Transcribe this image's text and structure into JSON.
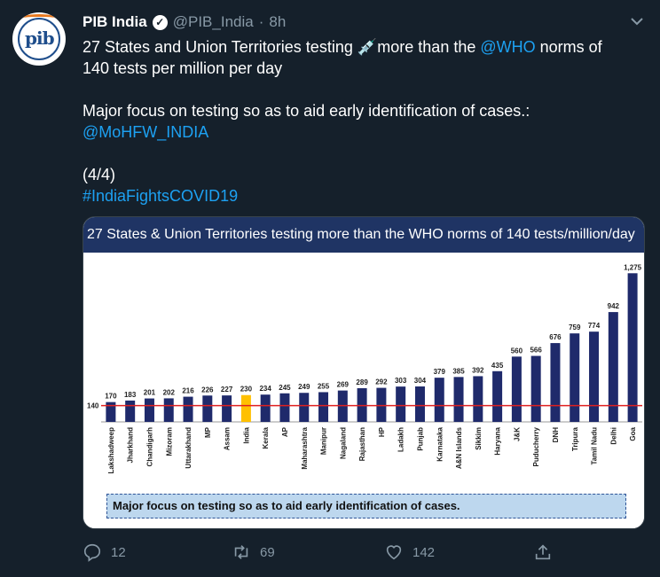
{
  "tweet": {
    "name": "PIB India",
    "handle": "@PIB_India",
    "dot": "·",
    "time": "8h",
    "line1_a": "27 States and Union Territories testing",
    "line1_b": "more than the",
    "who_link": "@WHO",
    "line1_c": "norms of",
    "line2": "140 tests per million per day",
    "line3": "Major focus on testing so as to aid early identification of cases.:",
    "mohfw_link": "@MoHFW_INDIA",
    "counter": "(4/4)",
    "hashtag": "#IndiaFightsCOVID19",
    "replies": "12",
    "retweets": "69",
    "likes": "142"
  },
  "card": {
    "title": "27 States & Union Territories  testing more than the WHO norms of 140 tests/million/day",
    "note": "Major focus on testing so as to aid early identification of cases."
  },
  "colors": {
    "background": "#15202b",
    "link": "#1da1f2",
    "muted": "#8899a6",
    "bar": "#1f2a6b",
    "highlight_bar": "#ffc000",
    "reference_line": "#e02020",
    "title_bar": "#1f3464"
  },
  "chart_data": {
    "type": "bar",
    "title": "27 States & Union Territories  testing more than the WHO norms of 140 tests/million/day",
    "categories": [
      "Lakshadweep",
      "Jharkhand",
      "Chandigarh",
      "Mizoram",
      "Uttarakhand",
      "MP",
      "Assam",
      "India",
      "Kerala",
      "AP",
      "Maharashtra",
      "Manipur",
      "Nagaland",
      "Rajasthan",
      "HP",
      "Ladakh",
      "Punjab",
      "Karnataka",
      "A&N Islands",
      "Sikkim",
      "Haryana",
      "J&K",
      "Puducherry",
      "DNH",
      "Tripura",
      "Tamil Nadu",
      "Delhi",
      "Goa"
    ],
    "values": [
      170,
      183,
      201,
      202,
      216,
      226,
      227,
      230,
      234,
      245,
      249,
      255,
      269,
      289,
      292,
      303,
      304,
      379,
      385,
      392,
      435,
      560,
      566,
      676,
      759,
      774,
      942,
      1275
    ],
    "value_labels": [
      "170",
      "183",
      "201",
      "202",
      "216",
      "226",
      "227",
      "230",
      "234",
      "245",
      "249",
      "255",
      "269",
      "289",
      "292",
      "303",
      "304",
      "379",
      "385",
      "392",
      "435",
      "560",
      "566",
      "676",
      "759",
      "774",
      "942",
      "1,275"
    ],
    "highlight_category": "India",
    "reference_line": {
      "value": 140,
      "label": "140"
    },
    "ylim": [
      0,
      1300
    ],
    "xlabel": "",
    "ylabel": ""
  }
}
